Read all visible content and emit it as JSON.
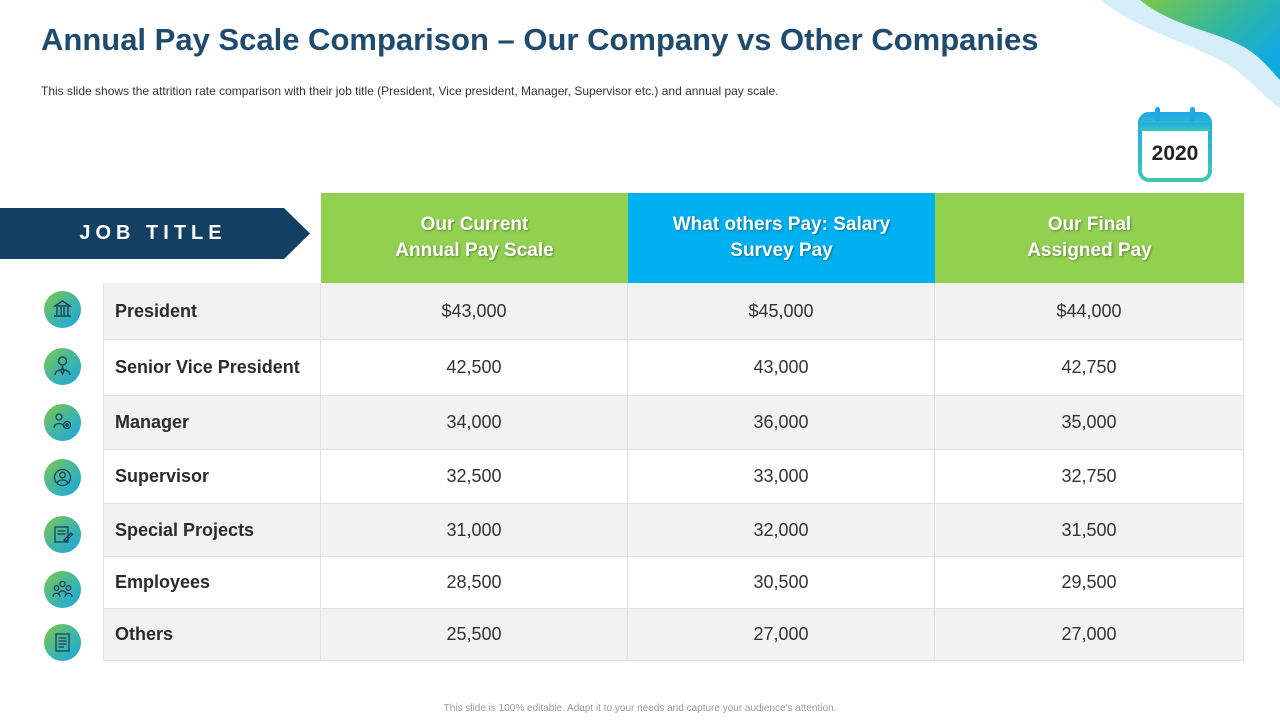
{
  "slide": {
    "title": "Annual Pay Scale Comparison – Our Company vs Other Companies",
    "subtitle": "This slide shows the attrition rate comparison with their job title (President, Vice president, Manager, Supervisor  etc.) and annual pay scale.",
    "year": "2020",
    "footer": "This slide is 100% editable. Adapt it to your needs and capture your audience's attention."
  },
  "table": {
    "job_title_label": "JOB TITLE",
    "headers": [
      {
        "line1": "Our Current",
        "line2": "Annual Pay Scale"
      },
      {
        "line1": "What others Pay: Salary",
        "line2": "Survey Pay"
      },
      {
        "line1": "Our Final",
        "line2": "Assigned Pay"
      }
    ],
    "rows": [
      {
        "title": "President",
        "current": "$43,000",
        "others": "$45,000",
        "final": "$44,000",
        "icon": "building-icon"
      },
      {
        "title": "Senior Vice President",
        "current": "42,500",
        "others": "43,000",
        "final": "42,750",
        "icon": "executive-icon"
      },
      {
        "title": "Manager",
        "current": "34,000",
        "others": "36,000",
        "final": "35,000",
        "icon": "manager-gear-icon"
      },
      {
        "title": "Supervisor",
        "current": "32,500",
        "others": "33,000",
        "final": "32,750",
        "icon": "supervisor-icon"
      },
      {
        "title": "Special Projects",
        "current": "31,000",
        "others": "32,000",
        "final": "31,500",
        "icon": "project-document-icon"
      },
      {
        "title": "Employees",
        "current": "28,500",
        "others": "30,500",
        "final": "29,500",
        "icon": "team-icon"
      },
      {
        "title": "Others",
        "current": "25,500",
        "others": "27,000",
        "final": "27,000",
        "icon": "document-icon"
      }
    ]
  },
  "colors": {
    "title": "#1e4b6e",
    "banner": "#133f63",
    "header_green": "#92d050",
    "header_blue": "#00b0f0",
    "row_shade": "#f2f2f2"
  }
}
